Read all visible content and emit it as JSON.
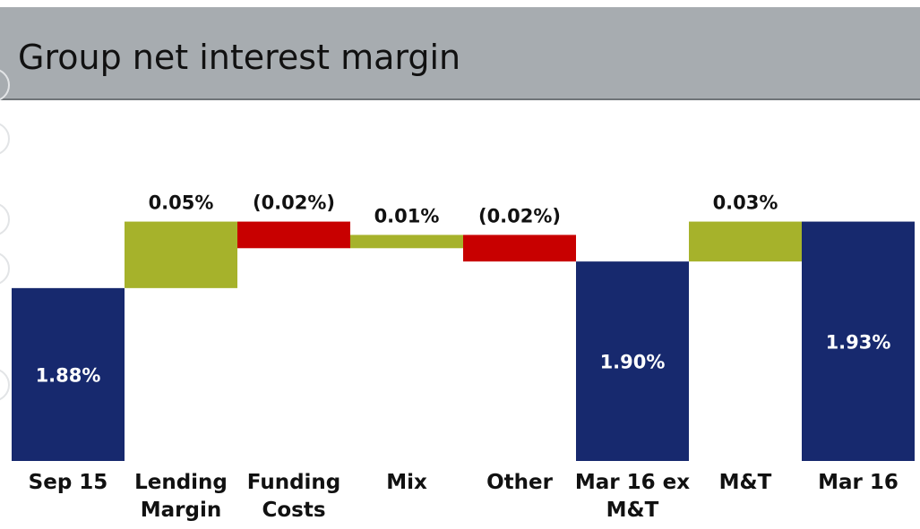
{
  "chart_data": {
    "type": "waterfall",
    "title": "Group net interest margin",
    "categories": [
      "Sep 15",
      "Lending Margin",
      "Funding Costs",
      "Mix",
      "Other",
      "Mar 16 ex M&T",
      "M&T",
      "Mar 16"
    ],
    "values": [
      1.88,
      0.05,
      -0.02,
      0.01,
      -0.02,
      1.9,
      0.03,
      1.93
    ],
    "value_labels": [
      "1.88%",
      "0.05%",
      "(0.02%)",
      "0.01%",
      "(0.02%)",
      "1.90%",
      "0.03%",
      "1.93%"
    ],
    "measure": [
      "absolute",
      "relative",
      "relative",
      "relative",
      "relative",
      "absolute",
      "relative",
      "absolute"
    ],
    "colors": {
      "absolute": "#17296e",
      "increase": "#a6b22b",
      "decrease": "#c80000"
    },
    "ylim": [
      1.75,
      1.96
    ]
  }
}
